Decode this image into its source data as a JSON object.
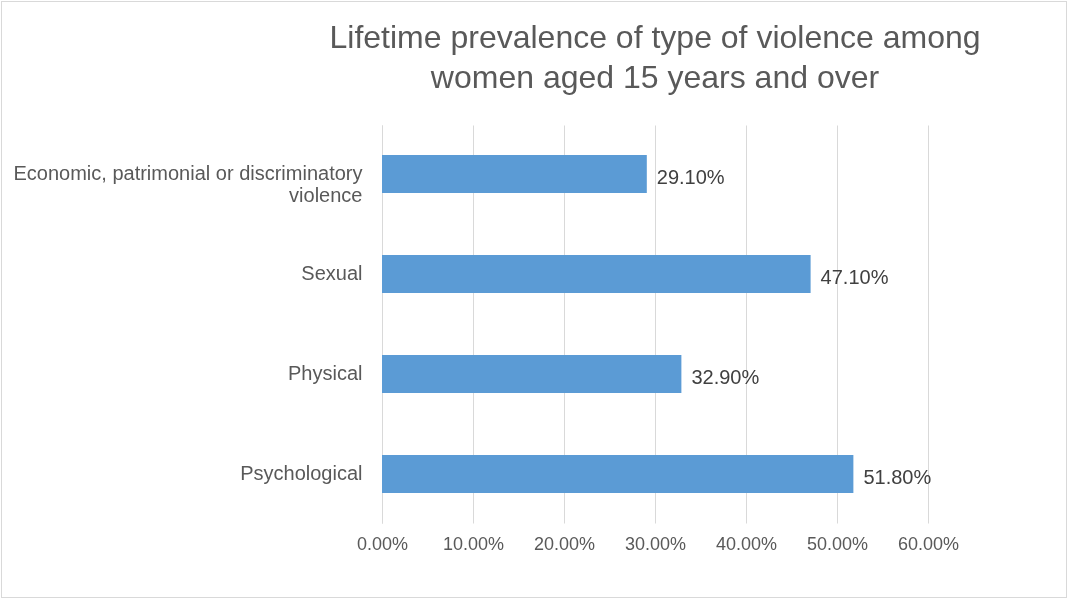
{
  "chart_data": {
    "type": "bar",
    "orientation": "horizontal",
    "title": "Lifetime prevalence of type of violence among women aged 15 years and over",
    "categories": [
      "Economic, patrimonial or discriminatory violence",
      "Sexual",
      "Physical",
      "Psychological"
    ],
    "values": [
      29.1,
      47.1,
      32.9,
      51.8
    ],
    "color": "#5b9bd5",
    "value_labels": [
      "29.10%",
      "47.10%",
      "32.90%",
      "51.80%"
    ],
    "xlim": [
      0,
      60
    ],
    "xticks": [
      {
        "value": 0,
        "label": "0.00%"
      },
      {
        "value": 10,
        "label": "10.00%"
      },
      {
        "value": 20,
        "label": "20.00%"
      },
      {
        "value": 30,
        "label": "30.00%"
      },
      {
        "value": 40,
        "label": "40.00%"
      },
      {
        "value": 50,
        "label": "50.00%"
      },
      {
        "value": 60,
        "label": "60.00%"
      }
    ],
    "grid": "x"
  }
}
